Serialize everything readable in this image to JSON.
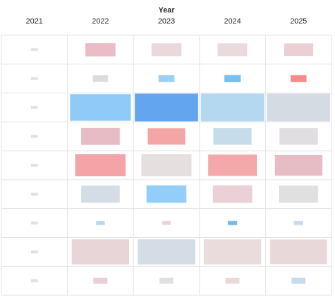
{
  "chart_data": {
    "type": "heatmap",
    "title": "Year",
    "categories": [
      "2021",
      "2022",
      "2023",
      "2024",
      "2025"
    ],
    "zlim": [
      0,
      1
    ],
    "series": [
      {
        "values": [
          0.1,
          0.46,
          0.45,
          0.45,
          0.44
        ],
        "colors": [
          "#e0e0e0",
          "#ebbcc5",
          "#ead8da",
          "#eadadc",
          "#ebcfd3"
        ]
      },
      {
        "values": [
          0.1,
          0.23,
          0.24,
          0.25,
          0.24
        ],
        "colors": [
          "#e0e0e0",
          "#dcdcdf",
          "#9dcff2",
          "#78c0f2",
          "#f58a8a"
        ]
      },
      {
        "values": [
          0.1,
          0.92,
          0.96,
          0.96,
          0.96
        ],
        "colors": [
          "#e0e0e0",
          "#8fcaf8",
          "#63a6ef",
          "#b3d8f0",
          "#d5dbe3"
        ]
      },
      {
        "values": [
          0.1,
          0.59,
          0.57,
          0.58,
          0.58
        ],
        "colors": [
          "#e0e0e0",
          "#e8bcc5",
          "#f4a6a6",
          "#c6dcea",
          "#e1dee1"
        ]
      },
      {
        "values": [
          0.1,
          0.76,
          0.76,
          0.74,
          0.72
        ],
        "colors": [
          "#e0e0e0",
          "#f4a3a6",
          "#e6dfdf",
          "#f4a8aa",
          "#e8bcc5"
        ]
      },
      {
        "values": [
          0.1,
          0.59,
          0.6,
          0.6,
          0.59
        ],
        "colors": [
          "#e0e0e0",
          "#d4dde6",
          "#93cefa",
          "#ebd1d5",
          "#e0dfe1"
        ]
      },
      {
        "values": [
          0.1,
          0.13,
          0.13,
          0.14,
          0.14
        ],
        "colors": [
          "#e0e0e0",
          "#b5d7f0",
          "#ebd3d8",
          "#77b9ee",
          "#c6dcec"
        ]
      },
      {
        "values": [
          0.1,
          0.87,
          0.87,
          0.87,
          0.86
        ],
        "colors": [
          "#e0e0e0",
          "#e8d5d8",
          "#d4dce6",
          "#eadcdc",
          "#e9d8d9"
        ]
      },
      {
        "values": [
          0.1,
          0.21,
          0.21,
          0.21,
          0.21
        ],
        "colors": [
          "#e0e0e0",
          "#ebcfd5",
          "#e0e0e0",
          "#ebd8da",
          "#c7dbee"
        ]
      }
    ]
  }
}
